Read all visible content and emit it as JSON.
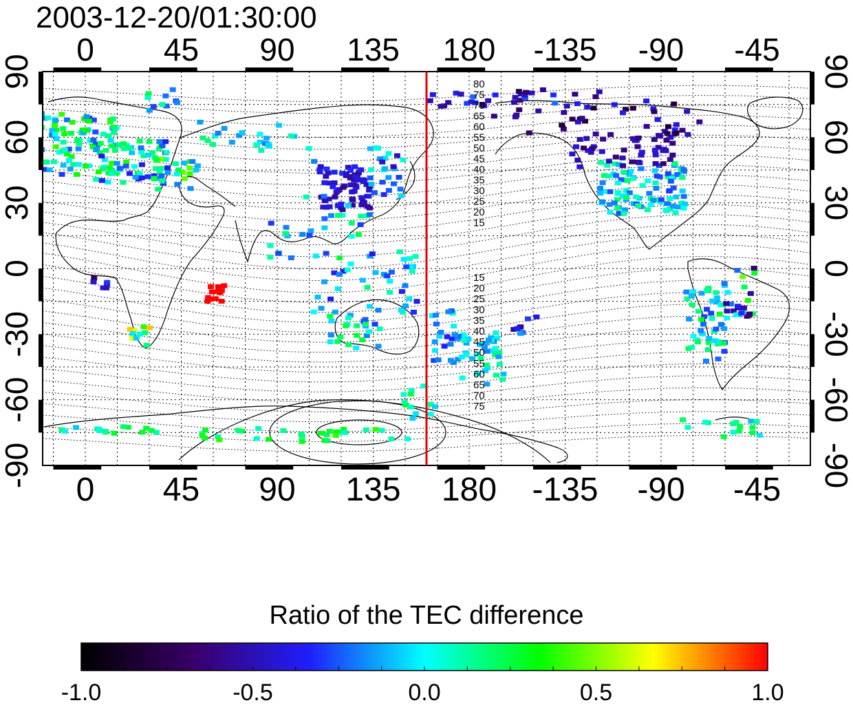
{
  "title": "2003-12-20/01:30:00",
  "axes": {
    "lon_ticks": [
      "0",
      "45",
      "90",
      "135",
      "180",
      "-135",
      "-90",
      "-45"
    ],
    "lat_ticks_left": [
      "90",
      "60",
      "30",
      "0",
      "-30",
      "-60",
      "-90"
    ],
    "lat_ticks_right": [
      "90",
      "60",
      "30",
      "0",
      "-30",
      "-60",
      "-90"
    ],
    "lon_range": [
      -20,
      340
    ],
    "lat_range": [
      -90,
      90
    ]
  },
  "meridian_line": {
    "longitude": 160,
    "color": "#e00000"
  },
  "contour_labels_north": [
    "80",
    "75",
    "70",
    "65",
    "60",
    "55",
    "50",
    "45",
    "40",
    "35",
    "30",
    "25",
    "20",
    "15"
  ],
  "contour_labels_south": [
    "15",
    "20",
    "25",
    "30",
    "35",
    "40",
    "45",
    "50",
    "55",
    "60",
    "65",
    "70",
    "75"
  ],
  "colorbar": {
    "title": "Ratio of the TEC difference",
    "tick_labels": [
      "-1.0",
      "-0.5",
      "0.0",
      "0.5",
      "1.0"
    ],
    "range": [
      -1.0,
      1.0
    ],
    "colors": [
      "#000000",
      "#3a006a",
      "#1f1fff",
      "#00ffff",
      "#00ff00",
      "#ffff00",
      "#ff0000"
    ]
  }
}
